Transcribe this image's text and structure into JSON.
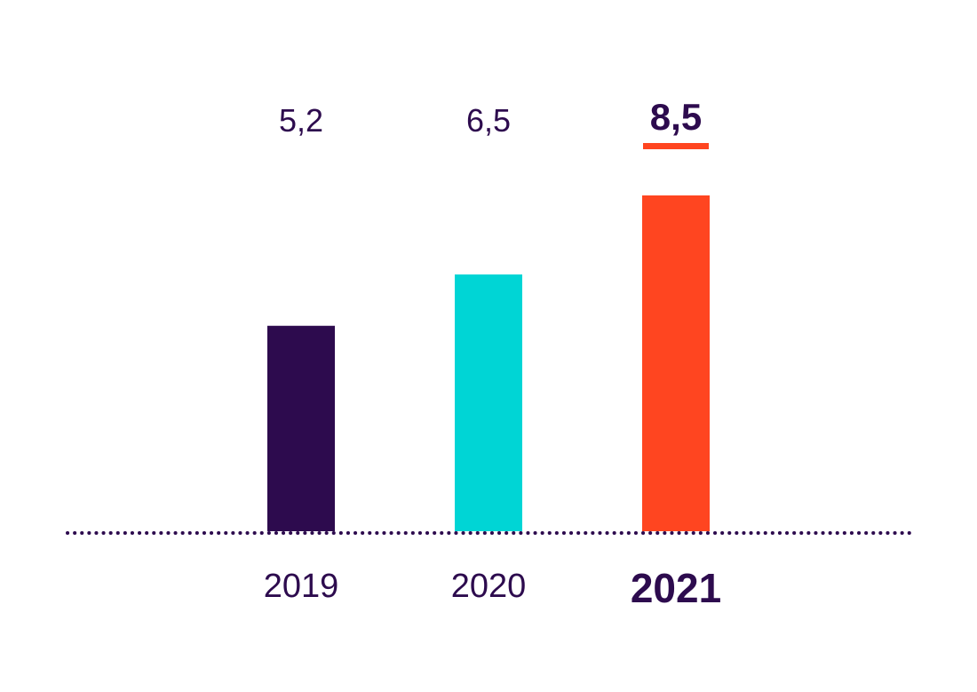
{
  "chart_data": {
    "type": "bar",
    "categories": [
      "2019",
      "2020",
      "2021"
    ],
    "values": [
      5.2,
      6.5,
      8.5
    ],
    "value_labels": [
      "5,2",
      "6,5",
      "8,5"
    ],
    "colors": [
      "#2d0b4e",
      "#00d5d5",
      "#ff4520"
    ],
    "highlight_index": 2,
    "highlight_underline_color": "#ff4520",
    "text_color": "#2d0b4e",
    "baseline_style": "dotted",
    "title": "",
    "xlabel": "",
    "ylabel": "",
    "ylim": [
      0,
      8.5
    ],
    "grid": false,
    "legend": "none"
  }
}
